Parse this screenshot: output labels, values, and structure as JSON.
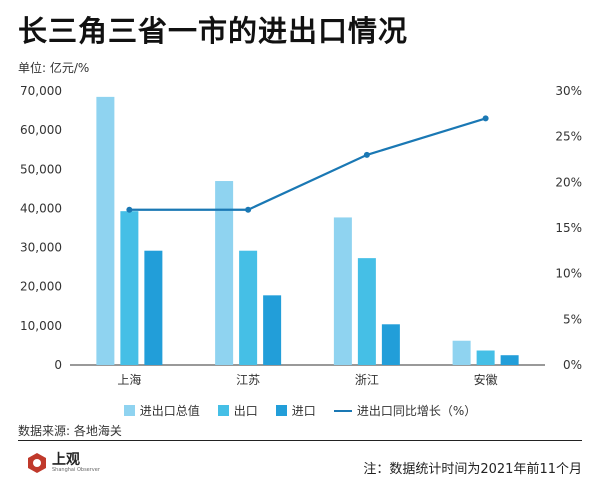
{
  "header": {
    "title": "长三角三省一市的进出口情况",
    "unit": "单位: 亿元/%"
  },
  "footer": {
    "source": "数据来源: 各地海关",
    "logo_text": "上观",
    "logo_sub": "Shanghai Observer",
    "note": "注：数据统计时间为2021年前11个月"
  },
  "colors": {
    "total": "#8fd3f0",
    "export": "#45bfe6",
    "import": "#229ed9",
    "growth_line": "#1a78b4",
    "logo": "#c0392b"
  },
  "chart_data": {
    "type": "bar",
    "categories": [
      "上海",
      "江苏",
      "浙江",
      "安徽"
    ],
    "series": [
      {
        "name": "进出口总值",
        "type": "bar",
        "axis": "left",
        "values": [
          68500,
          47000,
          37700,
          6200
        ]
      },
      {
        "name": "出口",
        "type": "bar",
        "axis": "left",
        "values": [
          39300,
          29200,
          27300,
          3700
        ]
      },
      {
        "name": "进口",
        "type": "bar",
        "axis": "left",
        "values": [
          29200,
          17800,
          10400,
          2500
        ]
      },
      {
        "name": "进出口同比增长（%）",
        "type": "line",
        "axis": "right",
        "values": [
          17,
          17,
          23,
          27
        ]
      }
    ],
    "y_left": {
      "min": 0,
      "max": 70000,
      "ticks": [
        "0",
        "10,000",
        "20,000",
        "30,000",
        "40,000",
        "50,000",
        "60,000",
        "70,000"
      ],
      "tick_values": [
        0,
        10000,
        20000,
        30000,
        40000,
        50000,
        60000,
        70000
      ]
    },
    "y_right": {
      "min": 0,
      "max": 30,
      "ticks": [
        "0%",
        "5%",
        "10%",
        "15%",
        "20%",
        "25%",
        "30%"
      ],
      "tick_values": [
        0,
        5,
        10,
        15,
        20,
        25,
        30
      ]
    },
    "grid": false,
    "legend_position": "bottom"
  }
}
